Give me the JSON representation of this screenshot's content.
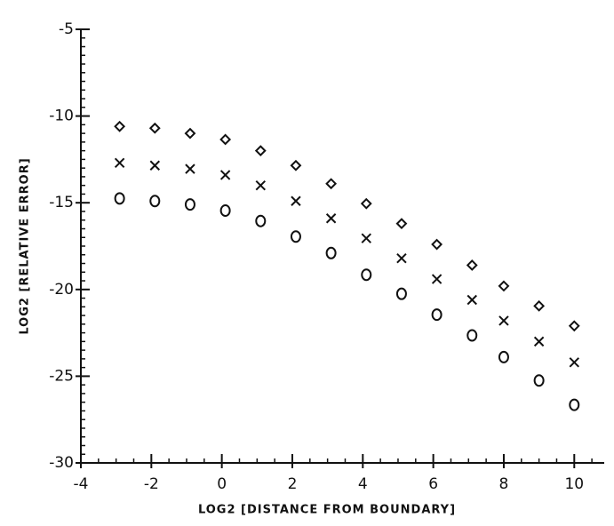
{
  "chart_data": {
    "type": "scatter",
    "x_label": "LOG2 [DISTANCE FROM BOUNDARY]",
    "y_label": "LOG2 [RELATIVE ERROR]",
    "x": [
      -2.9,
      -1.9,
      -0.9,
      0.1,
      1.1,
      2.1,
      3.1,
      4.1,
      5.1,
      6.1,
      7.1,
      8.0,
      9.0,
      10.0
    ],
    "series": [
      {
        "marker": "diamond",
        "color": "#111111",
        "values": [
          -10.6,
          -10.7,
          -11.0,
          -11.35,
          -12.0,
          -12.85,
          -13.9,
          -15.05,
          -16.2,
          -17.4,
          -18.6,
          -19.8,
          -20.95,
          -22.1
        ]
      },
      {
        "marker": "x",
        "color": "#111111",
        "values": [
          -12.7,
          -12.85,
          -13.05,
          -13.4,
          -14.0,
          -14.9,
          -15.9,
          -17.05,
          -18.2,
          -19.4,
          -20.6,
          -21.8,
          -23.0,
          -24.2
        ]
      },
      {
        "marker": "circle",
        "color": "#111111",
        "values": [
          -14.75,
          -14.9,
          -15.1,
          -15.45,
          -16.05,
          -16.95,
          -17.9,
          -19.15,
          -20.25,
          -21.45,
          -22.65,
          -23.9,
          -25.25,
          -26.65
        ]
      }
    ],
    "xlim": [
      -4,
      10.85
    ],
    "xticks": [
      -4,
      -2,
      0,
      2,
      4,
      6,
      8,
      10
    ],
    "ylim": [
      -30,
      -5
    ],
    "yticks": [
      -5,
      -10,
      -15,
      -20,
      -25,
      -30
    ],
    "minor_step": 0.5
  }
}
